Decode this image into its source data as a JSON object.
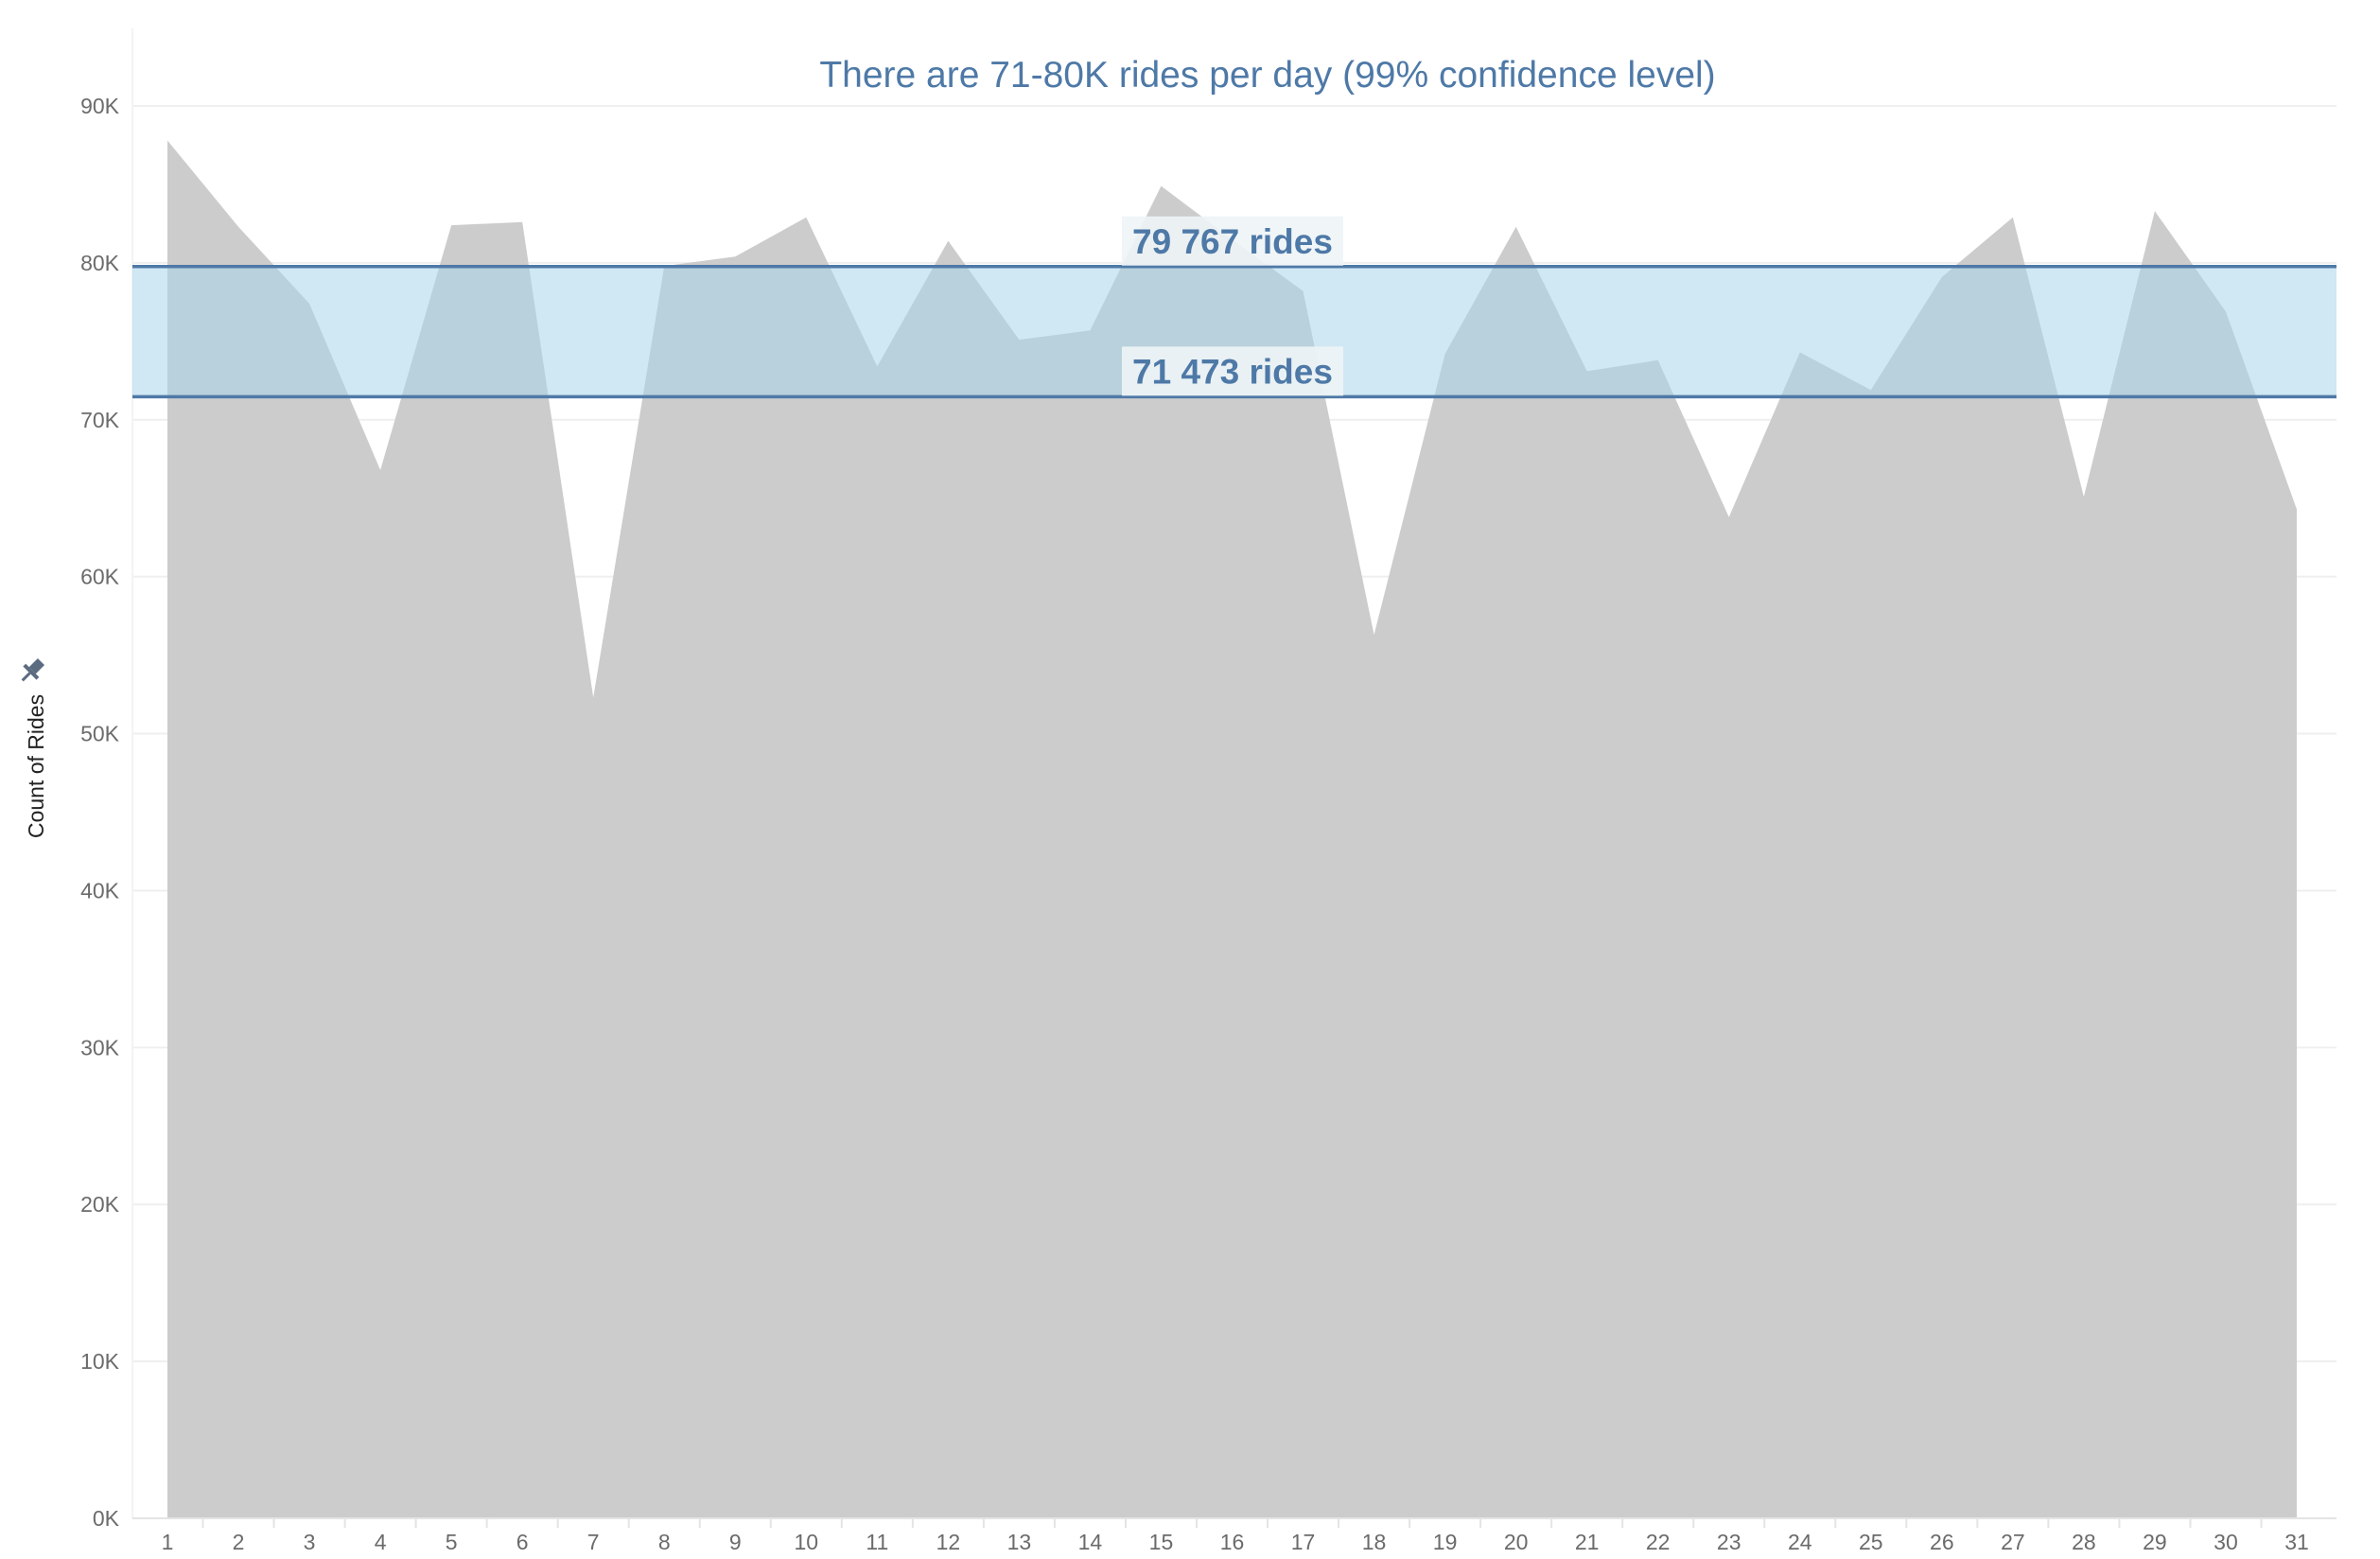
{
  "chart_data": {
    "type": "area",
    "title": "There are 71-80K rides per day (99% confidence level)",
    "ylabel": "Count of Rides",
    "xlabel": "",
    "x": [
      1,
      2,
      3,
      4,
      5,
      6,
      7,
      8,
      9,
      10,
      11,
      12,
      13,
      14,
      15,
      16,
      17,
      18,
      19,
      20,
      21,
      22,
      23,
      24,
      25,
      26,
      27,
      28,
      29,
      30,
      31
    ],
    "values": [
      87800,
      82300,
      77400,
      66800,
      82400,
      82600,
      52300,
      79800,
      80400,
      82900,
      73400,
      81400,
      75100,
      75700,
      84900,
      81500,
      78200,
      56300,
      74200,
      82300,
      73100,
      73800,
      63800,
      74300,
      71900,
      79100,
      82900,
      65100,
      83300,
      76900,
      64300
    ],
    "ylim": [
      0,
      90000
    ],
    "yticks": [
      0,
      10000,
      20000,
      30000,
      40000,
      50000,
      60000,
      70000,
      80000,
      90000
    ],
    "ytick_labels": [
      "0K",
      "10K",
      "20K",
      "30K",
      "40K",
      "50K",
      "60K",
      "70K",
      "80K",
      "90K"
    ],
    "grid": true,
    "reference_band": {
      "lower": 71473,
      "upper": 79767,
      "lower_label": "71 473 rides",
      "upper_label": "79 767 rides"
    },
    "colors": {
      "area": "#cccccc",
      "band": "#a8d5ea",
      "ref_line": "#4e79a7",
      "title": "#4e79a7"
    }
  }
}
